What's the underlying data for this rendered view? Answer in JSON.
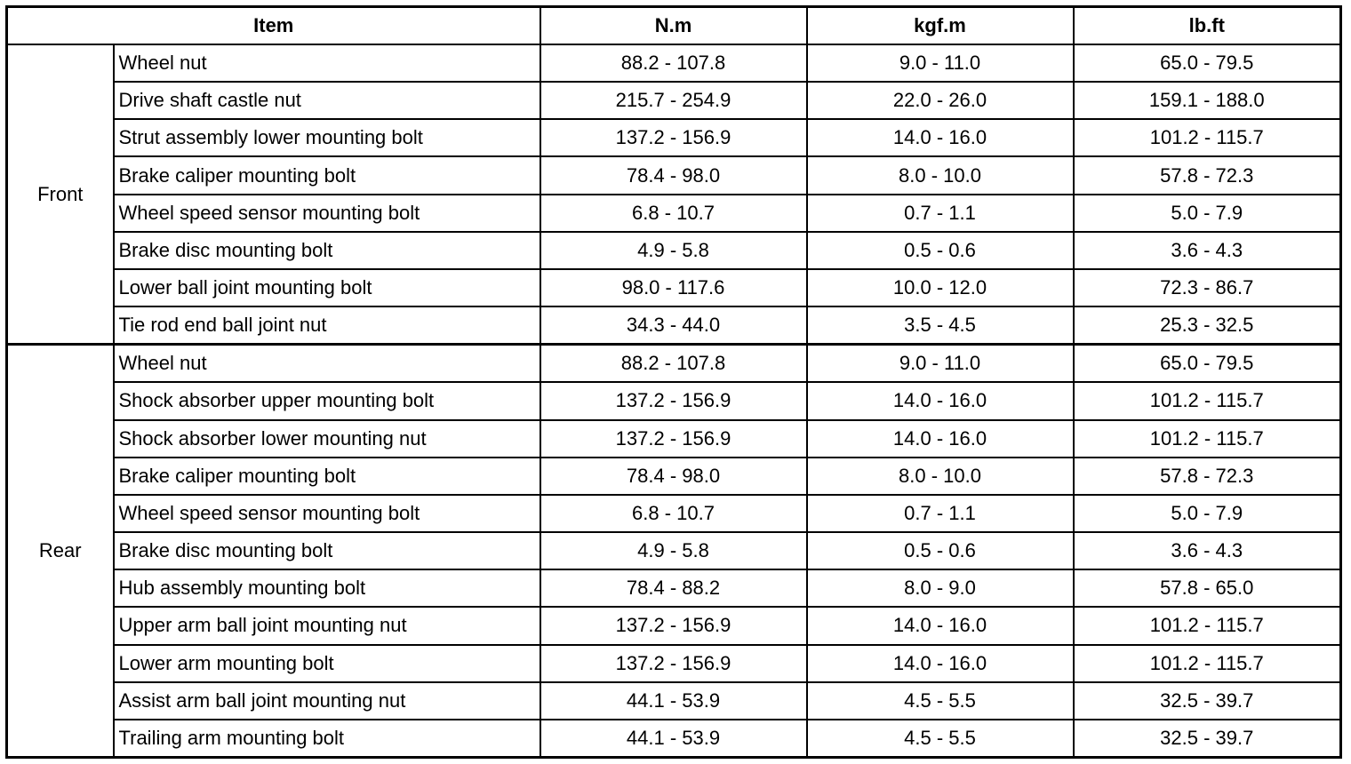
{
  "header": {
    "item": "Item",
    "nm": "N.m",
    "kgf": "kgf.m",
    "lbft": "lb.ft"
  },
  "groups": [
    {
      "name": "Front",
      "rows": [
        {
          "item": "Wheel nut",
          "nm": "88.2 - 107.8",
          "kgf": "9.0 - 11.0",
          "lbft": "65.0 - 79.5"
        },
        {
          "item": "Drive shaft castle nut",
          "nm": "215.7 - 254.9",
          "kgf": "22.0 - 26.0",
          "lbft": "159.1 - 188.0"
        },
        {
          "item": "Strut assembly lower mounting bolt",
          "nm": "137.2 - 156.9",
          "kgf": "14.0 - 16.0",
          "lbft": "101.2 - 115.7"
        },
        {
          "item": "Brake caliper mounting bolt",
          "nm": "78.4 - 98.0",
          "kgf": "8.0 - 10.0",
          "lbft": "57.8 - 72.3"
        },
        {
          "item": "Wheel speed sensor mounting bolt",
          "nm": "6.8 - 10.7",
          "kgf": "0.7 - 1.1",
          "lbft": "5.0 - 7.9"
        },
        {
          "item": "Brake disc mounting bolt",
          "nm": "4.9 - 5.8",
          "kgf": "0.5 - 0.6",
          "lbft": "3.6 - 4.3"
        },
        {
          "item": "Lower ball joint mounting bolt",
          "nm": "98.0 - 117.6",
          "kgf": "10.0 - 12.0",
          "lbft": "72.3 - 86.7"
        },
        {
          "item": "Tie rod end ball joint nut",
          "nm": "34.3 - 44.0",
          "kgf": "3.5 - 4.5",
          "lbft": "25.3 - 32.5"
        }
      ]
    },
    {
      "name": "Rear",
      "rows": [
        {
          "item": "Wheel nut",
          "nm": "88.2 - 107.8",
          "kgf": "9.0 - 11.0",
          "lbft": "65.0 - 79.5"
        },
        {
          "item": "Shock absorber upper mounting bolt",
          "nm": "137.2 - 156.9",
          "kgf": "14.0 - 16.0",
          "lbft": "101.2 - 115.7"
        },
        {
          "item": "Shock absorber lower mounting nut",
          "nm": "137.2 - 156.9",
          "kgf": "14.0 - 16.0",
          "lbft": "101.2 - 115.7"
        },
        {
          "item": "Brake caliper mounting bolt",
          "nm": "78.4 - 98.0",
          "kgf": "8.0 - 10.0",
          "lbft": "57.8 - 72.3"
        },
        {
          "item": "Wheel speed sensor mounting bolt",
          "nm": "6.8 - 10.7",
          "kgf": "0.7 - 1.1",
          "lbft": "5.0 - 7.9"
        },
        {
          "item": "Brake disc mounting bolt",
          "nm": "4.9 - 5.8",
          "kgf": "0.5 - 0.6",
          "lbft": "3.6 - 4.3"
        },
        {
          "item": "Hub assembly mounting bolt",
          "nm": "78.4 - 88.2",
          "kgf": "8.0 - 9.0",
          "lbft": "57.8 - 65.0"
        },
        {
          "item": "Upper arm ball joint mounting nut",
          "nm": "137.2 - 156.9",
          "kgf": "14.0 - 16.0",
          "lbft": "101.2 - 115.7"
        },
        {
          "item": "Lower arm mounting bolt",
          "nm": "137.2 - 156.9",
          "kgf": "14.0 - 16.0",
          "lbft": "101.2 - 115.7"
        },
        {
          "item": "Assist arm ball joint mounting nut",
          "nm": "44.1 - 53.9",
          "kgf": "4.5 - 5.5",
          "lbft": "32.5 - 39.7"
        },
        {
          "item": "Trailing arm mounting bolt",
          "nm": "44.1 - 53.9",
          "kgf": "4.5 - 5.5",
          "lbft": "32.5 - 39.7"
        }
      ]
    }
  ]
}
